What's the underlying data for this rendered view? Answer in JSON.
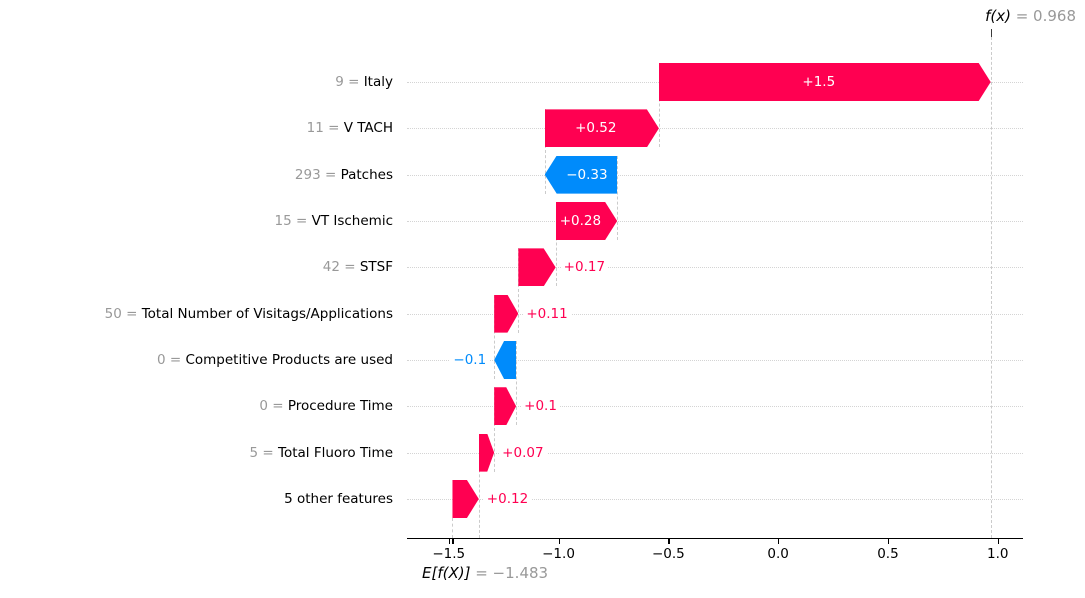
{
  "title": {
    "fx_label": "f(x)",
    "fx_value_text": " = 0.968"
  },
  "baseline": {
    "label": "E[f(X)]",
    "value_text": " = −1.483"
  },
  "chart_data": {
    "type": "waterfall",
    "description": "SHAP waterfall plot of feature contributions",
    "fx": 0.968,
    "base": -1.483,
    "xlim": [
      -1.69,
      1.115
    ],
    "xticks": [
      -1.5,
      -1.0,
      -0.5,
      0.0,
      0.5,
      1.0
    ],
    "xtick_labels": [
      "−1.5",
      "−1.0",
      "−0.5",
      "0.0",
      "0.5",
      "1.0"
    ],
    "colors": {
      "positive": "#ff0051",
      "negative": "#008bfb",
      "value_prefix_gray": "#999999",
      "grid": "#d4d4d4"
    },
    "rows": [
      {
        "prefix": "9 = ",
        "feature": "Italy",
        "shap": 1.5,
        "label": "+1.5"
      },
      {
        "prefix": "11 = ",
        "feature": "V TACH",
        "shap": 0.52,
        "label": "+0.52"
      },
      {
        "prefix": "293 = ",
        "feature": "Patches",
        "shap": -0.33,
        "label": "−0.33"
      },
      {
        "prefix": "15 = ",
        "feature": "VT Ischemic",
        "shap": 0.28,
        "label": "+0.28"
      },
      {
        "prefix": "42 = ",
        "feature": "STSF",
        "shap": 0.17,
        "label": "+0.17"
      },
      {
        "prefix": "50 = ",
        "feature": "Total Number of Visitags/Applications",
        "shap": 0.11,
        "label": "+0.11"
      },
      {
        "prefix": "0 = ",
        "feature": "Competitive Products are used",
        "shap": -0.1,
        "label": "−0.1"
      },
      {
        "prefix": "0 = ",
        "feature": "Procedure Time",
        "shap": 0.1,
        "label": "+0.1"
      },
      {
        "prefix": "5 = ",
        "feature": "Total Fluoro Time",
        "shap": 0.07,
        "label": "+0.07"
      },
      {
        "prefix": "",
        "feature": "5 other features",
        "shap": 0.12,
        "label": "+0.12"
      }
    ]
  }
}
